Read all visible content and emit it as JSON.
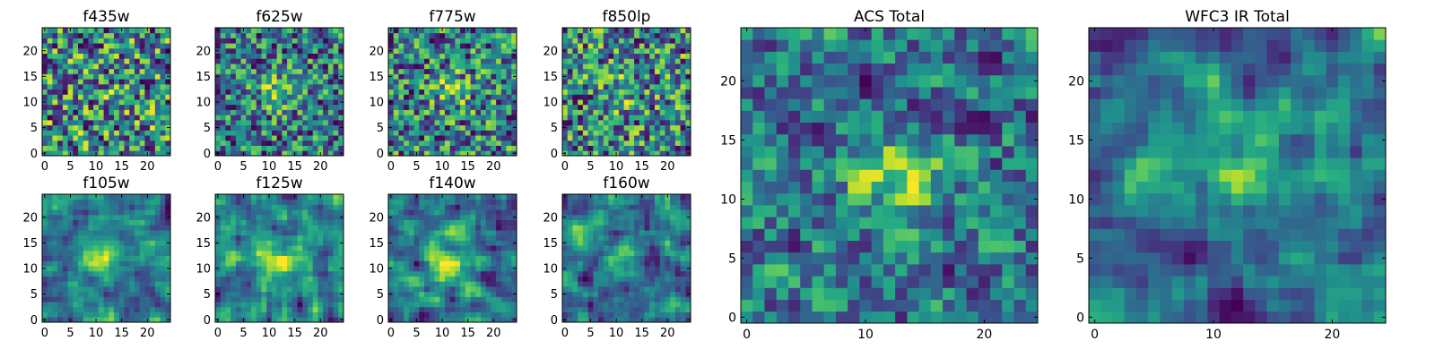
{
  "figure": {
    "background": "#ffffff"
  },
  "colormap": "viridis",
  "chart_data": [
    {
      "type": "heatmap",
      "title": "f435w",
      "grid_size": 25,
      "xlim": [
        -0.5,
        24.5
      ],
      "ylim": [
        -0.5,
        24.5
      ],
      "xticks": [
        0,
        5,
        10,
        15,
        20
      ],
      "yticks": [
        0,
        5,
        10,
        15,
        20
      ],
      "seed": 11,
      "mode": "noise",
      "center": [
        13,
        12
      ],
      "peak": 0.05
    },
    {
      "type": "heatmap",
      "title": "f625w",
      "grid_size": 25,
      "xlim": [
        -0.5,
        24.5
      ],
      "ylim": [
        -0.5,
        24.5
      ],
      "xticks": [
        0,
        5,
        10,
        15,
        20
      ],
      "yticks": [
        0,
        5,
        10,
        15,
        20
      ],
      "seed": 23,
      "mode": "noise",
      "center": [
        12,
        12
      ],
      "peak": 0.35
    },
    {
      "type": "heatmap",
      "title": "f775w",
      "grid_size": 25,
      "xlim": [
        -0.5,
        24.5
      ],
      "ylim": [
        -0.5,
        24.5
      ],
      "xticks": [
        0,
        5,
        10,
        15,
        20
      ],
      "yticks": [
        0,
        5,
        10,
        15,
        20
      ],
      "seed": 37,
      "mode": "noise",
      "center": [
        12,
        12
      ],
      "peak": 0.25
    },
    {
      "type": "heatmap",
      "title": "f850lp",
      "grid_size": 25,
      "xlim": [
        -0.5,
        24.5
      ],
      "ylim": [
        -0.5,
        24.5
      ],
      "xticks": [
        0,
        5,
        10,
        15,
        20
      ],
      "yticks": [
        0,
        5,
        10,
        15,
        20
      ],
      "seed": 41,
      "mode": "noise",
      "center": [
        12,
        12
      ],
      "peak": 0.15
    },
    {
      "type": "heatmap",
      "title": "f105w",
      "grid_size": 25,
      "xlim": [
        -0.5,
        24.5
      ],
      "ylim": [
        -0.5,
        24.5
      ],
      "xticks": [
        0,
        5,
        10,
        15,
        20
      ],
      "yticks": [
        0,
        5,
        10,
        15,
        20
      ],
      "seed": 53,
      "mode": "smooth",
      "center": [
        11,
        12
      ],
      "peak": 0.35
    },
    {
      "type": "heatmap",
      "title": "f125w",
      "grid_size": 25,
      "xlim": [
        -0.5,
        24.5
      ],
      "ylim": [
        -0.5,
        24.5
      ],
      "xticks": [
        0,
        5,
        10,
        15,
        20
      ],
      "yticks": [
        0,
        5,
        10,
        15,
        20
      ],
      "seed": 67,
      "mode": "smooth",
      "center": [
        12,
        12
      ],
      "peak": 0.3
    },
    {
      "type": "heatmap",
      "title": "f140w",
      "grid_size": 25,
      "xlim": [
        -0.5,
        24.5
      ],
      "ylim": [
        -0.5,
        24.5
      ],
      "xticks": [
        0,
        5,
        10,
        15,
        20
      ],
      "yticks": [
        0,
        5,
        10,
        15,
        20
      ],
      "seed": 71,
      "mode": "smooth",
      "center": [
        12,
        11
      ],
      "peak": 0.3
    },
    {
      "type": "heatmap",
      "title": "f160w",
      "grid_size": 25,
      "xlim": [
        -0.5,
        24.5
      ],
      "ylim": [
        -0.5,
        24.5
      ],
      "xticks": [
        0,
        5,
        10,
        15,
        20
      ],
      "yticks": [
        0,
        5,
        10,
        15,
        20
      ],
      "seed": 83,
      "mode": "smooth",
      "center": [
        12,
        12
      ],
      "peak": 0.3
    },
    {
      "type": "heatmap",
      "title": "ACS Total",
      "grid_size": 25,
      "xlim": [
        -0.5,
        24.5
      ],
      "ylim": [
        -0.5,
        24.5
      ],
      "xticks": [
        0,
        10,
        20
      ],
      "yticks": [
        0,
        5,
        10,
        15,
        20
      ],
      "seed": 97,
      "mode": "blend",
      "center": [
        13,
        12
      ],
      "peak": 0.45
    },
    {
      "type": "heatmap",
      "title": "WFC3 IR Total",
      "grid_size": 25,
      "xlim": [
        -0.5,
        24.5
      ],
      "ylim": [
        -0.5,
        24.5
      ],
      "xticks": [
        0,
        10,
        20
      ],
      "yticks": [
        0,
        5,
        10,
        15,
        20
      ],
      "seed": 109,
      "mode": "smooth",
      "center": [
        12,
        13
      ],
      "peak": 0.4
    }
  ]
}
